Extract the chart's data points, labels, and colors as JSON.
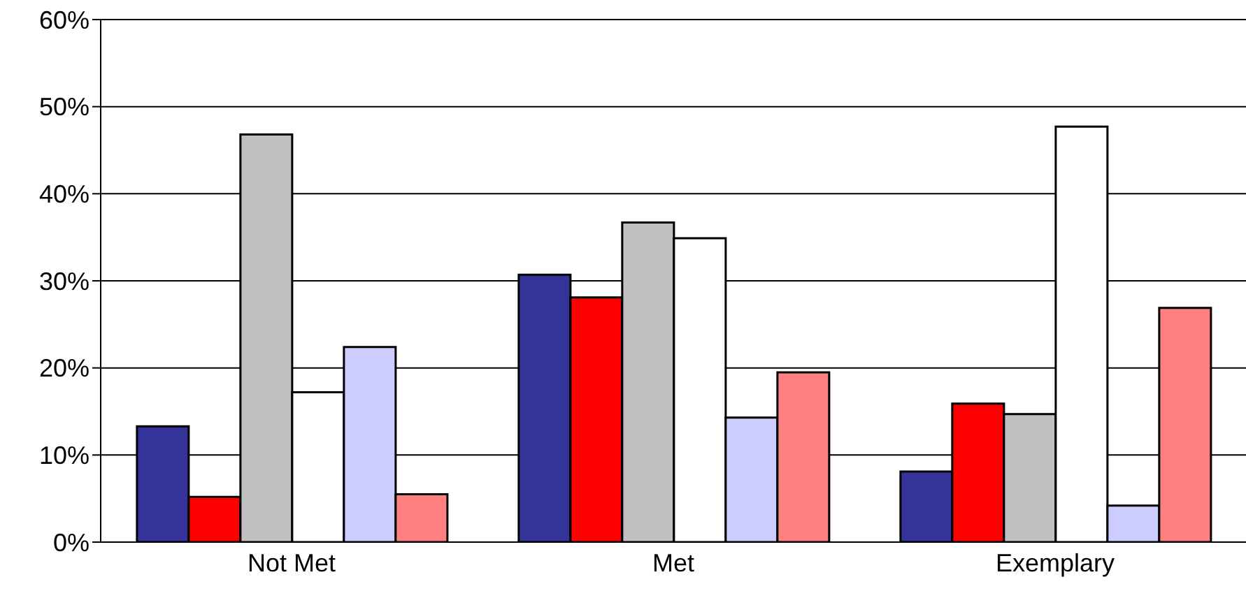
{
  "chart_data": {
    "type": "bar",
    "categories": [
      "Not Met",
      "Met",
      "Exemplary"
    ],
    "series": [
      {
        "color": "#333399",
        "values": [
          13.3,
          30.7,
          8.1
        ]
      },
      {
        "color": "#ff0000",
        "values": [
          5.2,
          28.1,
          15.9
        ]
      },
      {
        "color": "#c0c0c0",
        "values": [
          46.8,
          36.7,
          14.7
        ]
      },
      {
        "color": "#ffffff",
        "values": [
          17.2,
          34.9,
          47.7
        ]
      },
      {
        "color": "#ccccff",
        "values": [
          22.4,
          14.3,
          4.2
        ]
      },
      {
        "color": "#ff8080",
        "values": [
          5.5,
          19.5,
          26.9
        ]
      }
    ],
    "ylim": [
      0,
      60
    ],
    "yticks": [
      {
        "value": 0,
        "label": "0%"
      },
      {
        "value": 10,
        "label": "10%"
      },
      {
        "value": 20,
        "label": "20%"
      },
      {
        "value": 30,
        "label": "30%"
      },
      {
        "value": 40,
        "label": "40%"
      },
      {
        "value": 50,
        "label": "50%"
      },
      {
        "value": 60,
        "label": "60%"
      }
    ],
    "grid": "y",
    "legend": false
  }
}
